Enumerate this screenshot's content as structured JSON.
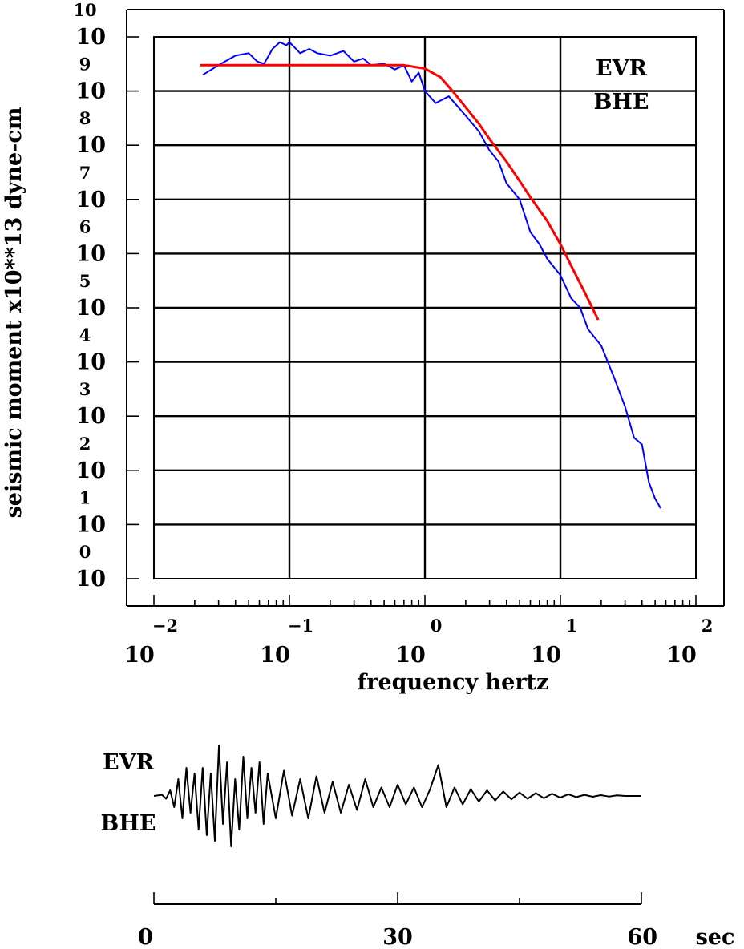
{
  "chart_data": [
    {
      "type": "line",
      "scale": "log-log",
      "ylabel": "seismic moment x10**13 dyne-cm",
      "xlabel": "frequency hertz",
      "xlim": [
        0.01,
        100
      ],
      "ylim": [
        1,
        10000000000
      ],
      "x_ticks": [
        {
          "base": "10",
          "exp": "−2"
        },
        {
          "base": "10",
          "exp": "−1"
        },
        {
          "base": "10",
          "exp": "0"
        },
        {
          "base": "10",
          "exp": "1"
        },
        {
          "base": "10",
          "exp": "2"
        }
      ],
      "y_ticks": [
        {
          "base": "10",
          "exp": "0"
        },
        {
          "base": "10",
          "exp": "1"
        },
        {
          "base": "10",
          "exp": "2"
        },
        {
          "base": "10",
          "exp": "3"
        },
        {
          "base": "10",
          "exp": "4"
        },
        {
          "base": "10",
          "exp": "5"
        },
        {
          "base": "10",
          "exp": "6"
        },
        {
          "base": "10",
          "exp": "7"
        },
        {
          "base": "10",
          "exp": "8"
        },
        {
          "base": "10",
          "exp": "9"
        },
        {
          "base": "10",
          "exp": "10"
        }
      ],
      "grid": true,
      "annotations": [
        "EVR",
        "BHE"
      ],
      "series": [
        {
          "color": "#0000ff",
          "x": [
            0.023,
            0.03,
            0.04,
            0.05,
            0.058,
            0.065,
            0.075,
            0.085,
            0.095,
            0.1,
            0.12,
            0.14,
            0.16,
            0.2,
            0.25,
            0.3,
            0.35,
            0.4,
            0.5,
            0.6,
            0.7,
            0.8,
            0.9,
            1.0,
            1.2,
            1.5,
            2.0,
            2.5,
            3.0,
            3.5,
            4.0,
            5.0,
            6.0,
            7.0,
            8.0,
            10,
            12,
            14,
            16,
            20,
            25,
            30,
            35,
            40,
            45,
            50,
            55
          ],
          "y": [
            2000000000.0,
            3000000000.0,
            4500000000.0,
            5000000000.0,
            3500000000.0,
            3200000000.0,
            6000000000.0,
            8000000000.0,
            7000000000.0,
            8000000000.0,
            5000000000.0,
            6000000000.0,
            5000000000.0,
            4500000000.0,
            5500000000.0,
            3500000000.0,
            4000000000.0,
            3000000000.0,
            3200000000.0,
            2500000000.0,
            3000000000.0,
            1500000000.0,
            2200000000.0,
            1000000000.0,
            600000000.0,
            800000000.0,
            350000000.0,
            180000000.0,
            80000000.0,
            50000000.0,
            20000000.0,
            10000000.0,
            2500000.0,
            1500000.0,
            800000.0,
            400000.0,
            150000.0,
            100000.0,
            40000.0,
            20000.0,
            5000.0,
            1500.0,
            400.0,
            300.0,
            60,
            30,
            20
          ]
        },
        {
          "color": "#ff0000",
          "x": [
            0.022,
            0.05,
            0.1,
            0.2,
            0.4,
            0.7,
            1.0,
            1.3,
            1.6,
            2.0,
            2.5,
            3.0,
            4.0,
            5.0,
            6.0,
            8.0,
            10,
            12,
            15,
            19
          ],
          "y": [
            3000000000.0,
            3000000000.0,
            3000000000.0,
            3000000000.0,
            3000000000.0,
            3000000000.0,
            2600000000.0,
            1800000000.0,
            1000000000.0,
            500000000.0,
            250000000.0,
            130000000.0,
            50000000.0,
            22000000.0,
            11000000.0,
            4000000.0,
            1500000.0,
            600000.0,
            200000.0,
            60000.0
          ]
        }
      ]
    },
    {
      "type": "line",
      "xlabel": "sec",
      "xlim": [
        0,
        60
      ],
      "x_ticks": [
        "0",
        "30",
        "60"
      ],
      "annotations": [
        "EVR",
        "BHE"
      ],
      "series": [
        {
          "color": "#000000",
          "x": [
            0,
            1,
            1.5,
            2,
            2.5,
            3,
            3.5,
            4,
            4.5,
            5,
            5.5,
            6,
            6.5,
            7,
            7.5,
            8,
            8.5,
            9,
            9.5,
            10,
            10.5,
            11,
            11.5,
            12,
            12.5,
            13,
            13.5,
            14,
            15,
            16,
            17,
            18,
            19,
            20,
            21,
            22,
            23,
            24,
            25,
            26,
            27,
            28,
            29,
            30,
            31,
            32,
            33,
            34,
            35,
            36,
            37,
            38,
            39,
            40,
            41,
            42,
            43,
            44,
            45,
            46,
            47,
            48,
            49,
            50,
            51,
            52,
            53,
            54,
            55,
            56,
            57,
            58,
            59,
            60
          ],
          "y": [
            0,
            0.02,
            -0.05,
            0.1,
            -0.2,
            0.3,
            -0.4,
            0.5,
            -0.3,
            0.4,
            -0.6,
            0.5,
            -0.7,
            0.4,
            -0.8,
            0.9,
            -0.5,
            0.6,
            -0.9,
            0.3,
            -0.6,
            0.7,
            -0.4,
            0.5,
            -0.3,
            0.6,
            -0.5,
            0.4,
            -0.4,
            0.45,
            -0.35,
            0.3,
            -0.4,
            0.35,
            -0.3,
            0.25,
            -0.3,
            0.2,
            -0.25,
            0.3,
            -0.2,
            0.15,
            -0.2,
            0.2,
            -0.15,
            0.15,
            -0.2,
            0.12,
            0.55,
            -0.2,
            0.15,
            -0.15,
            0.12,
            -0.1,
            0.1,
            -0.08,
            0.08,
            -0.06,
            0.06,
            -0.05,
            0.05,
            -0.04,
            0.04,
            -0.03,
            0.03,
            -0.02,
            0.02,
            -0.015,
            0.015,
            -0.01,
            0.01,
            0,
            0,
            0
          ]
        }
      ]
    }
  ]
}
